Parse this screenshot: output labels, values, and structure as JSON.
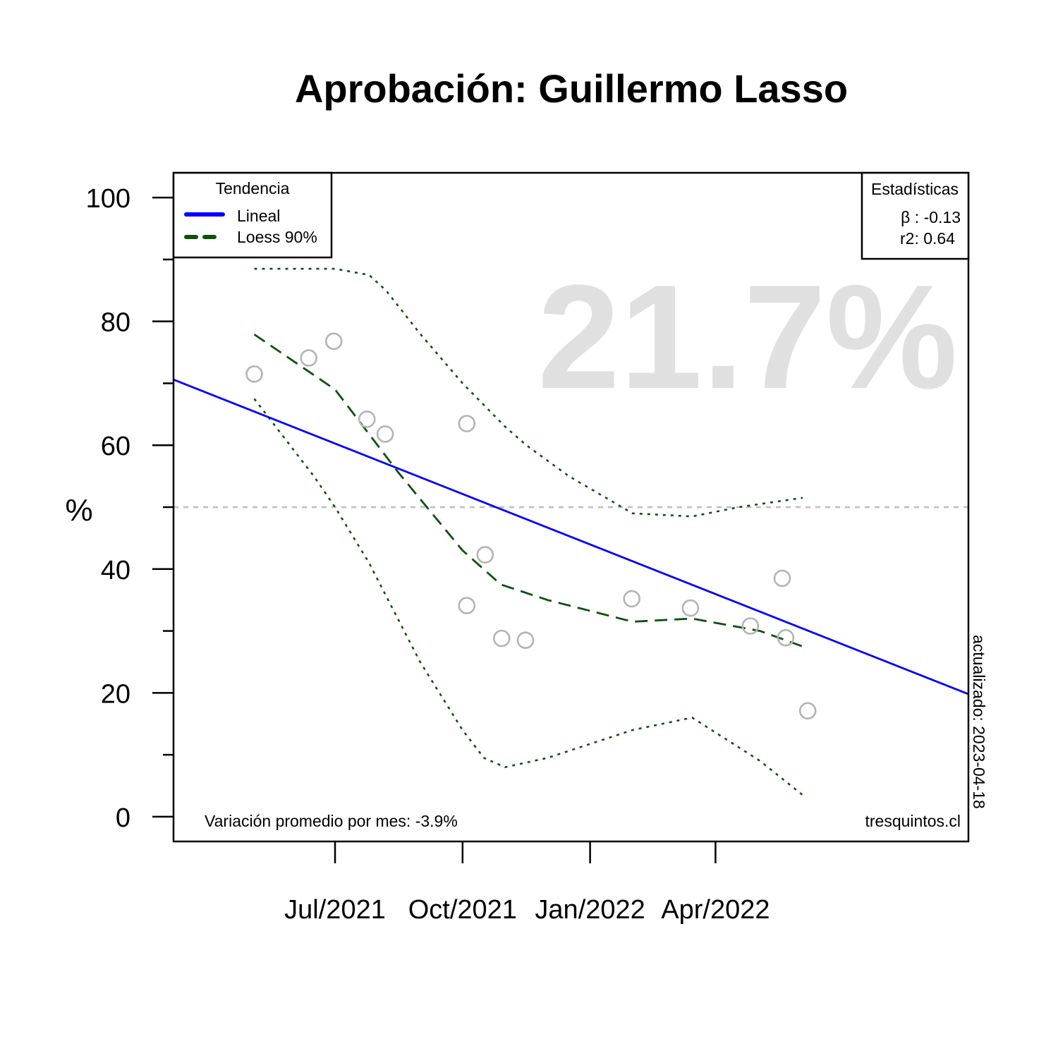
{
  "chart_data": {
    "type": "scatter",
    "title": "Aprobación: Guillermo Lasso",
    "ylabel": "%",
    "xlabel": "",
    "ylim": [
      -4,
      104
    ],
    "xlim": [
      -2.8,
      15.9
    ],
    "y_ticks": [
      0,
      20,
      40,
      60,
      80,
      100
    ],
    "y_minor_ticks": [
      10,
      30,
      50,
      70,
      90
    ],
    "x_ticks": [
      {
        "x": 1,
        "label": "Jul/2021"
      },
      {
        "x": 4,
        "label": "Oct/2021"
      },
      {
        "x": 7,
        "label": "Jan/2022"
      },
      {
        "x": 9.95,
        "label": "Apr/2022"
      }
    ],
    "reference_line": 50,
    "points": [
      {
        "x": -0.9,
        "y": 71.5
      },
      {
        "x": 0.38,
        "y": 74.1
      },
      {
        "x": 0.97,
        "y": 76.8
      },
      {
        "x": 1.75,
        "y": 64.2
      },
      {
        "x": 2.18,
        "y": 61.8
      },
      {
        "x": 4.1,
        "y": 63.5
      },
      {
        "x": 4.1,
        "y": 34.1
      },
      {
        "x": 4.53,
        "y": 42.3
      },
      {
        "x": 4.92,
        "y": 28.8
      },
      {
        "x": 5.48,
        "y": 28.5
      },
      {
        "x": 7.98,
        "y": 35.2
      },
      {
        "x": 9.36,
        "y": 33.7
      },
      {
        "x": 10.77,
        "y": 30.8
      },
      {
        "x": 11.52,
        "y": 38.5
      },
      {
        "x": 11.6,
        "y": 28.9
      },
      {
        "x": 12.12,
        "y": 17.1
      }
    ],
    "series": [
      {
        "name": "Lineal",
        "kind": "linear",
        "color": "#0000ff",
        "x": [
          -2.8,
          15.9
        ],
        "values": [
          70.6,
          19.8
        ]
      },
      {
        "name": "Loess 90%",
        "kind": "loess",
        "color": "#0b520b",
        "x": [
          -0.9,
          1.0,
          2.5,
          4.0,
          4.9,
          6.0,
          8.0,
          9.4,
          11.0,
          12.0
        ],
        "values": [
          77.9,
          69.0,
          55.5,
          43.0,
          37.5,
          35.0,
          31.5,
          32.0,
          30.0,
          27.5
        ]
      },
      {
        "name": "Loess 90% upper",
        "kind": "band",
        "color": "#0b520b",
        "x": [
          -0.9,
          1.0,
          1.8,
          2.2,
          3.0,
          4.0,
          5.0,
          5.5,
          6.5,
          8.0,
          9.4,
          10.5,
          12.0
        ],
        "values": [
          88.5,
          88.5,
          87.5,
          85.0,
          78.0,
          70.0,
          63.0,
          60.0,
          55.0,
          49.0,
          48.5,
          50.0,
          51.5
        ]
      },
      {
        "name": "Loess 90% lower",
        "kind": "band",
        "color": "#0b520b",
        "x": [
          -0.9,
          0.5,
          1.0,
          1.8,
          3.0,
          4.0,
          4.5,
          5.0,
          6.0,
          8.0,
          9.4,
          11.0,
          12.0
        ],
        "values": [
          67.5,
          55.0,
          50.0,
          41.0,
          25.0,
          14.0,
          9.5,
          8.0,
          9.5,
          14.0,
          16.0,
          9.0,
          3.5
        ]
      }
    ],
    "legend": {
      "title": "Tendencia",
      "position": "top-left",
      "items": [
        {
          "label": "Lineal",
          "color": "#0000ff",
          "style": "solid"
        },
        {
          "label": "Loess 90%",
          "color": "#0b520b",
          "style": "dashed"
        }
      ]
    },
    "stats": {
      "title": "Estadísticas",
      "position": "top-right",
      "beta": "β : -0.13",
      "r2": "r2: 0.64"
    },
    "big_value": "21.7%",
    "footer_left": "Variación promedio por mes: -3.9%",
    "footer_right": "tresquintos.cl",
    "side_note": "actualizado: 2023-04-18",
    "colors": {
      "points": "#b4b4b4",
      "reference_line": "#bebebe",
      "big_value": "#e0e0e0",
      "axis": "#000000"
    }
  }
}
